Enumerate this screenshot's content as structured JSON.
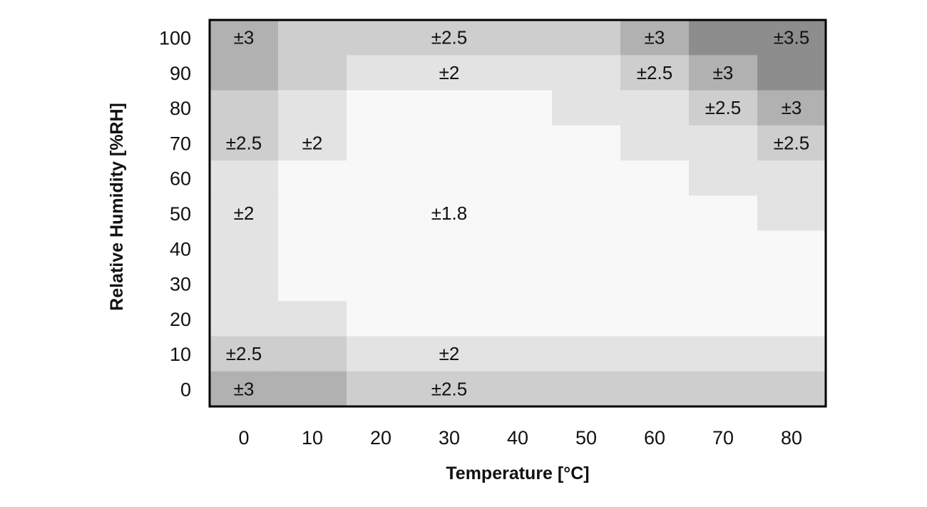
{
  "chart_data": {
    "type": "heatmap",
    "xlabel": "Temperature [°C]",
    "ylabel": "Relative Humidity [%RH]",
    "x": [
      0,
      10,
      20,
      30,
      40,
      50,
      60,
      70,
      80
    ],
    "y": [
      100,
      90,
      80,
      70,
      60,
      50,
      40,
      30,
      20,
      10,
      0
    ],
    "values": [
      [
        3,
        2.5,
        2.5,
        2.5,
        2.5,
        2.5,
        3,
        3.5,
        3.5
      ],
      [
        3,
        2.5,
        2,
        2,
        2,
        2,
        2.5,
        3,
        3.5
      ],
      [
        2.5,
        2,
        1.8,
        1.8,
        1.8,
        2,
        2,
        2.5,
        3
      ],
      [
        2.5,
        2,
        1.8,
        1.8,
        1.8,
        1.8,
        2,
        2,
        2.5
      ],
      [
        2,
        1.8,
        1.8,
        1.8,
        1.8,
        1.8,
        1.8,
        2,
        2
      ],
      [
        2,
        1.8,
        1.8,
        1.8,
        1.8,
        1.8,
        1.8,
        1.8,
        2
      ],
      [
        2,
        1.8,
        1.8,
        1.8,
        1.8,
        1.8,
        1.8,
        1.8,
        1.8
      ],
      [
        2,
        1.8,
        1.8,
        1.8,
        1.8,
        1.8,
        1.8,
        1.8,
        1.8
      ],
      [
        2,
        2,
        1.8,
        1.8,
        1.8,
        1.8,
        1.8,
        1.8,
        1.8
      ],
      [
        2.5,
        2.5,
        2,
        2,
        2,
        2,
        2,
        2,
        2
      ],
      [
        3,
        3,
        2.5,
        2.5,
        2.5,
        2.5,
        2.5,
        2.5,
        2.5
      ]
    ],
    "colors": {
      "1.8": "#f8f8f8",
      "2": "#e3e3e3",
      "2.5": "#cecece",
      "3": "#b1b1b1",
      "3.5": "#8d8d8d"
    },
    "annotations": [
      {
        "x": 0,
        "y": 100,
        "text": "±3"
      },
      {
        "x": 30,
        "y": 100,
        "text": "±2.5"
      },
      {
        "x": 60,
        "y": 100,
        "text": "±3"
      },
      {
        "x": 80,
        "y": 100,
        "text": "±3.5"
      },
      {
        "x": 30,
        "y": 90,
        "text": "±2"
      },
      {
        "x": 60,
        "y": 90,
        "text": "±2.5"
      },
      {
        "x": 70,
        "y": 90,
        "text": "±3"
      },
      {
        "x": 70,
        "y": 80,
        "text": "±2.5"
      },
      {
        "x": 80,
        "y": 80,
        "text": "±3"
      },
      {
        "x": 0,
        "y": 70,
        "text": "±2.5"
      },
      {
        "x": 10,
        "y": 70,
        "text": "±2"
      },
      {
        "x": 80,
        "y": 70,
        "text": "±2.5"
      },
      {
        "x": 0,
        "y": 50,
        "text": "±2"
      },
      {
        "x": 30,
        "y": 50,
        "text": "±1.8"
      },
      {
        "x": 0,
        "y": 10,
        "text": "±2.5"
      },
      {
        "x": 30,
        "y": 10,
        "text": "±2"
      },
      {
        "x": 0,
        "y": 0,
        "text": "±3"
      },
      {
        "x": 30,
        "y": 0,
        "text": "±2.5"
      }
    ],
    "grid": false,
    "legend": "none"
  }
}
